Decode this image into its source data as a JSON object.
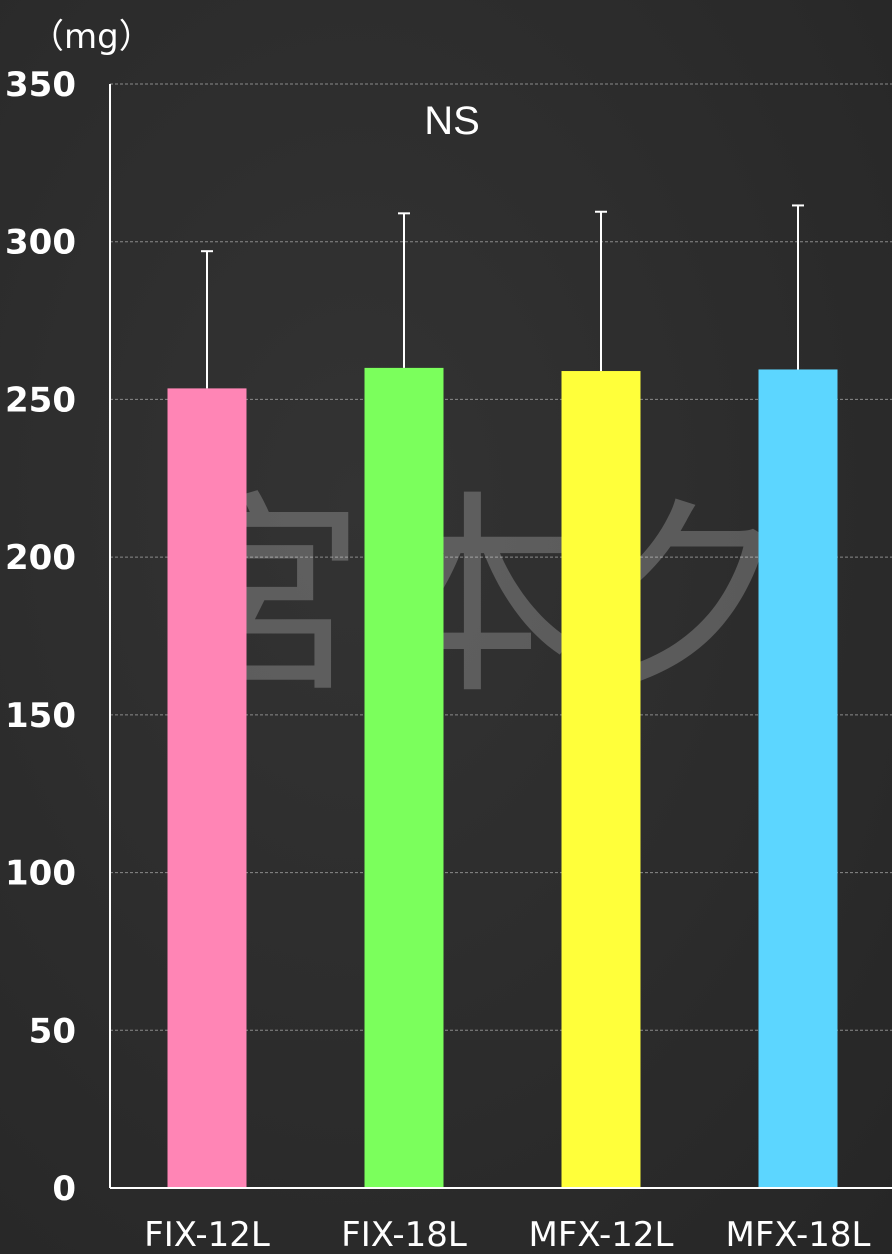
{
  "chart_data": {
    "type": "bar",
    "ylabel": "（mg）",
    "categories": [
      "FIX-12L",
      "FIX-18L",
      "MFX-12L",
      "MFX-18L"
    ],
    "values": [
      253.5,
      260,
      259,
      259.5
    ],
    "error_upper": [
      297,
      309,
      309.5,
      311.5
    ],
    "bar_colors": [
      "#ff85b5",
      "#7bff5c",
      "#ffff3a",
      "#5cd6ff"
    ],
    "ylim": [
      0,
      350
    ],
    "yticks": [
      0,
      50,
      100,
      150,
      200,
      250,
      300,
      350
    ],
    "grid": true,
    "annotation": "NS"
  },
  "watermark": {
    "text": "宮本ク"
  },
  "colors": {
    "background": "#2b2b2b",
    "axis": "#ffffff",
    "grid": "#8a8a8a",
    "text": "#ffffff"
  }
}
